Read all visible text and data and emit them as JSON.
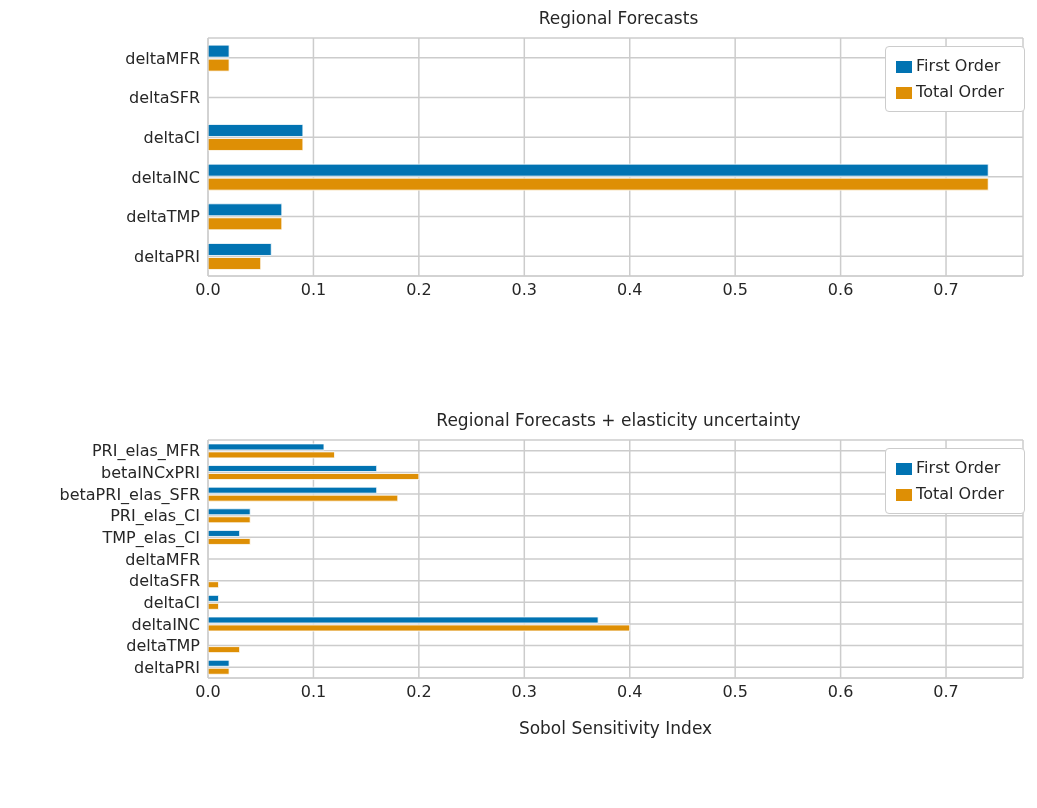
{
  "chart_data": [
    {
      "type": "bar",
      "orientation": "horizontal",
      "title": "Regional Forecasts",
      "categories": [
        "deltaMFR",
        "deltaSFR",
        "deltaCI",
        "deltaINC",
        "deltaTMP",
        "deltaPRI"
      ],
      "series": [
        {
          "name": "First Order",
          "color": "#0173b2",
          "values": [
            0.02,
            0,
            0.09,
            0.74,
            0.07,
            0.06
          ]
        },
        {
          "name": "Total Order",
          "color": "#de8f05",
          "values": [
            0.02,
            0,
            0.09,
            0.74,
            0.07,
            0.05
          ]
        }
      ],
      "xlim": [
        0,
        0.773
      ],
      "xticks": [
        {
          "value": 0,
          "label": "0.0"
        },
        0.1,
        0.2,
        0.3,
        0.4,
        0.5,
        0.6,
        0.7
      ],
      "grid": true,
      "legend": "top right"
    },
    {
      "type": "bar",
      "orientation": "horizontal",
      "title": "Regional Forecasts + elasticity uncertainty",
      "xlabel": "Sobol Sensitivity Index",
      "categories": [
        "PRI_elas_MFR",
        "betaINCxPRI",
        "betaPRI_elas_SFR",
        "PRI_elas_CI",
        "TMP_elas_CI",
        "deltaMFR",
        "deltaSFR",
        "deltaCI",
        "deltaINC",
        "deltaTMP",
        "deltaPRI"
      ],
      "series": [
        {
          "name": "First Order",
          "color": "#0173b2",
          "values": [
            0.11,
            0.16,
            0.16,
            0.04,
            0.03,
            0,
            0,
            0.01,
            0.37,
            0,
            0.02
          ]
        },
        {
          "name": "Total Order",
          "color": "#de8f05",
          "values": [
            0.12,
            0.2,
            0.18,
            0.04,
            0.04,
            0,
            0.01,
            0.01,
            0.4,
            0.03,
            0.02
          ]
        }
      ],
      "xlim": [
        0,
        0.773
      ],
      "xticks": [
        {
          "value": 0,
          "label": "0.0"
        },
        0.1,
        0.2,
        0.3,
        0.4,
        0.5,
        0.6,
        0.7
      ],
      "grid": true,
      "legend": "top right"
    }
  ]
}
